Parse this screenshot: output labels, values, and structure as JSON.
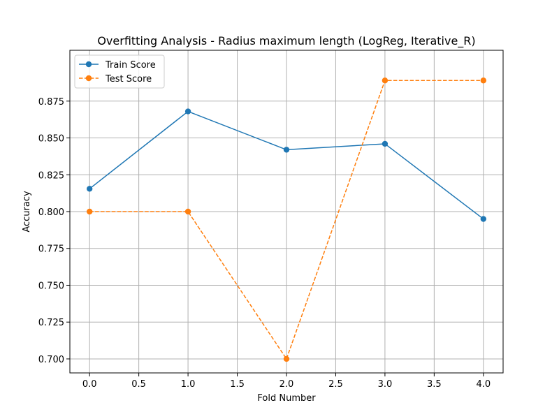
{
  "chart_data": {
    "type": "line",
    "title": "Overfitting Analysis - Radius maximum length (LogReg, Iterative_R)",
    "xlabel": "Fold Number",
    "ylabel": "Accuracy",
    "x": [
      0,
      1,
      2,
      3,
      4
    ],
    "xlim": [
      -0.2,
      4.2
    ],
    "ylim": [
      0.6905,
      0.9095
    ],
    "xticks": [
      "0.0",
      "0.5",
      "1.0",
      "1.5",
      "2.0",
      "2.5",
      "3.0",
      "3.5",
      "4.0"
    ],
    "yticks": [
      "0.700",
      "0.725",
      "0.750",
      "0.775",
      "0.800",
      "0.825",
      "0.850",
      "0.875"
    ],
    "grid": true,
    "legend_position": "upper-left",
    "series": [
      {
        "name": "Train Score",
        "values": [
          0.8155,
          0.868,
          0.842,
          0.846,
          0.795
        ],
        "color": "#1f77b4",
        "linestyle": "solid",
        "marker": "circle"
      },
      {
        "name": "Test Score",
        "values": [
          0.8,
          0.8,
          0.7,
          0.889,
          0.889
        ],
        "color": "#ff7f0e",
        "linestyle": "dashed",
        "marker": "circle"
      }
    ]
  }
}
